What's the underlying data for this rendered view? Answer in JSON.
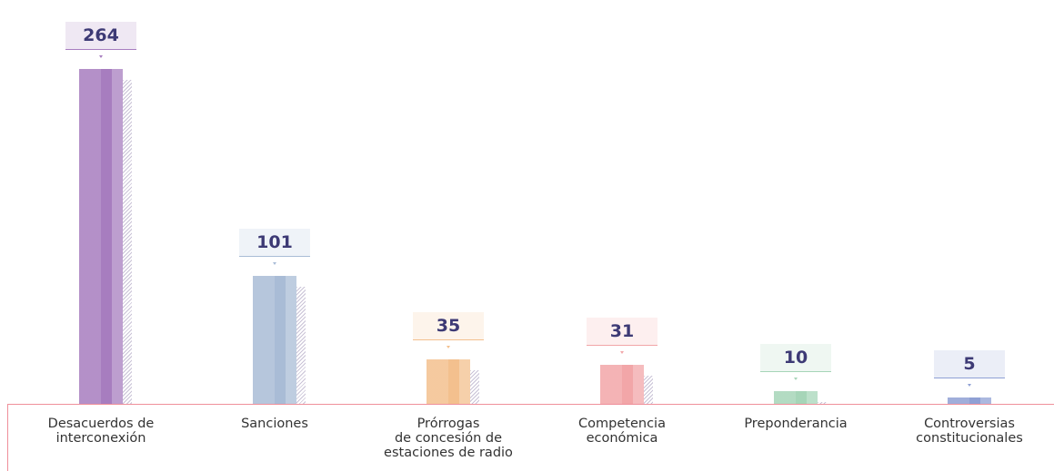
{
  "chart_data": {
    "type": "bar",
    "categories": [
      "Desacuerdos de\ninterconexión",
      "Sanciones",
      "Prórrogas\nde concesión de\nestaciones de radio",
      "Competencia\neconómica",
      "Preponderancia",
      "Controversias\nconstitucionales"
    ],
    "values": [
      264,
      101,
      35,
      31,
      10,
      5
    ],
    "colors": [
      "#a77dbf",
      "#a9bcd6",
      "#f3c08e",
      "#f2a6a8",
      "#a6d5b8",
      "#8fa0d4"
    ]
  }
}
